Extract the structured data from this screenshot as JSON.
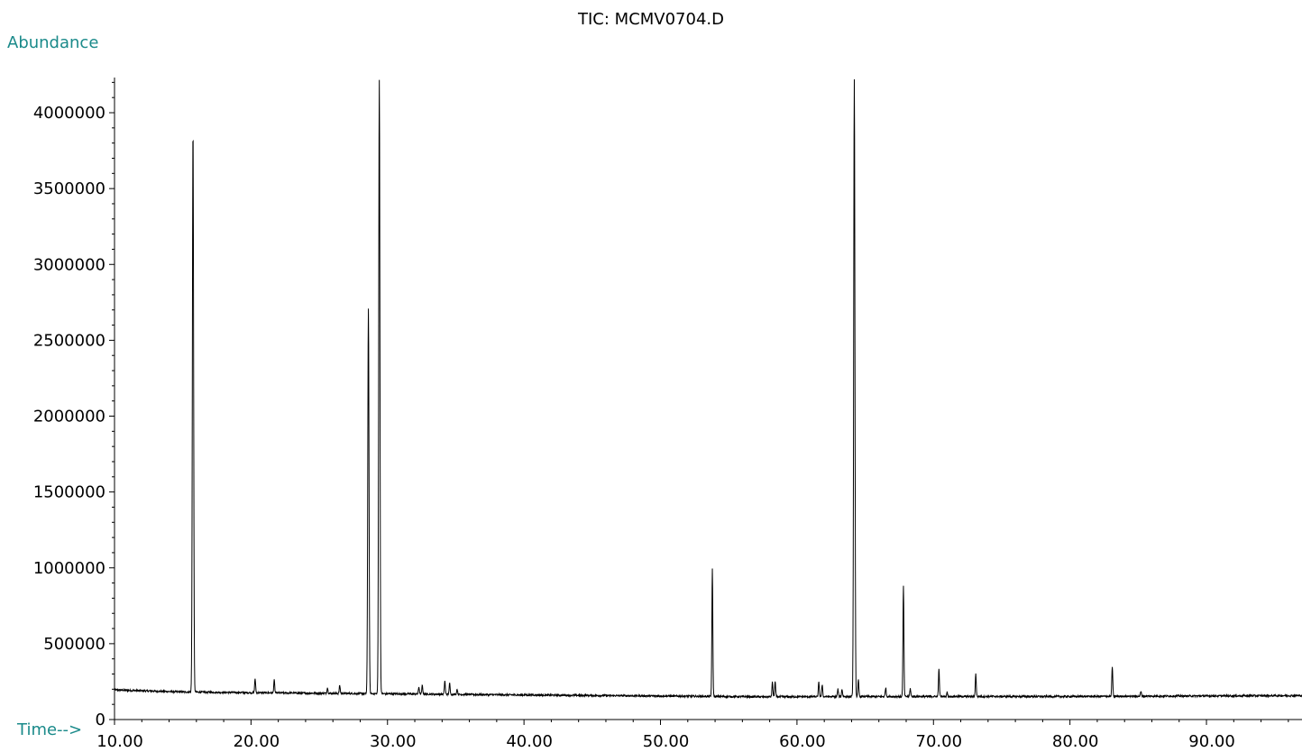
{
  "chart_data": {
    "type": "line",
    "title": "TIC: MCMV0704.D",
    "xlabel": "Time-->",
    "ylabel": "Abundance",
    "xlim": [
      10.0,
      97.0
    ],
    "ylim": [
      0,
      4220000
    ],
    "x_ticks": [
      "10.00",
      "20.00",
      "30.00",
      "40.00",
      "50.00",
      "60.00",
      "70.00",
      "80.00",
      "90.00"
    ],
    "y_ticks": [
      "0",
      "500000",
      "1000000",
      "1500000",
      "2000000",
      "2500000",
      "3000000",
      "3500000",
      "4000000"
    ],
    "grid": false,
    "line_color": "#000000",
    "label_color": "#1a8a8a",
    "baseline": [
      {
        "x": 10.0,
        "y": 195000
      },
      {
        "x": 15.0,
        "y": 182000
      },
      {
        "x": 20.0,
        "y": 177000
      },
      {
        "x": 30.0,
        "y": 170000
      },
      {
        "x": 40.0,
        "y": 162000
      },
      {
        "x": 50.0,
        "y": 155000
      },
      {
        "x": 57.0,
        "y": 150000
      },
      {
        "x": 70.0,
        "y": 152000
      },
      {
        "x": 80.0,
        "y": 152000
      },
      {
        "x": 97.0,
        "y": 158000
      }
    ],
    "peaks": [
      {
        "rt": 15.75,
        "abundance": 3900000
      },
      {
        "rt": 20.3,
        "abundance": 270000
      },
      {
        "rt": 21.7,
        "abundance": 260000
      },
      {
        "rt": 25.6,
        "abundance": 210000
      },
      {
        "rt": 26.5,
        "abundance": 225000
      },
      {
        "rt": 28.6,
        "abundance": 2710000
      },
      {
        "rt": 29.4,
        "abundance": 4220000
      },
      {
        "rt": 32.3,
        "abundance": 215000
      },
      {
        "rt": 32.55,
        "abundance": 225000
      },
      {
        "rt": 34.2,
        "abundance": 255000
      },
      {
        "rt": 34.55,
        "abundance": 240000
      },
      {
        "rt": 35.1,
        "abundance": 200000
      },
      {
        "rt": 53.8,
        "abundance": 990000
      },
      {
        "rt": 58.2,
        "abundance": 245000
      },
      {
        "rt": 58.4,
        "abundance": 250000
      },
      {
        "rt": 61.6,
        "abundance": 245000
      },
      {
        "rt": 61.85,
        "abundance": 230000
      },
      {
        "rt": 63.0,
        "abundance": 200000
      },
      {
        "rt": 63.3,
        "abundance": 200000
      },
      {
        "rt": 64.2,
        "abundance": 4220000
      },
      {
        "rt": 64.5,
        "abundance": 260000
      },
      {
        "rt": 66.5,
        "abundance": 210000
      },
      {
        "rt": 67.8,
        "abundance": 880000
      },
      {
        "rt": 68.3,
        "abundance": 205000
      },
      {
        "rt": 70.4,
        "abundance": 330000
      },
      {
        "rt": 71.0,
        "abundance": 180000
      },
      {
        "rt": 73.1,
        "abundance": 300000
      },
      {
        "rt": 83.1,
        "abundance": 350000
      },
      {
        "rt": 85.2,
        "abundance": 185000
      }
    ]
  }
}
